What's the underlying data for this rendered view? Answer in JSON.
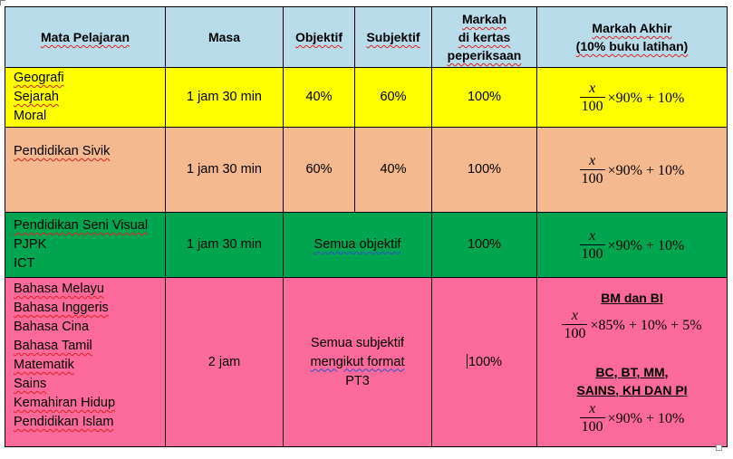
{
  "headers": {
    "mata_pelajaran": "Mata Pelajaran",
    "masa": "Masa",
    "objektif": "Objektif",
    "subjektif": "Subjektif",
    "markah_line1": "Markah",
    "markah_line2": "di kertas",
    "markah_line3": "peperiksaan",
    "akhir_line1": "Markah Akhir",
    "akhir_line2": "(10% buku latihan)"
  },
  "rows": [
    {
      "subjects": [
        "Geografi",
        "Sejarah",
        "Moral"
      ],
      "masa": "1 jam 30 min",
      "objektif": "40%",
      "subjektif": "60%",
      "markah": "100%",
      "formula": {
        "num": "x",
        "den": "100",
        "rest": "×90% + 10%"
      }
    },
    {
      "subjects": [
        "Pendidikan Sivik"
      ],
      "masa": "1 jam 30 min",
      "objektif": "60%",
      "subjektif": "40%",
      "markah": "100%",
      "formula": {
        "num": "x",
        "den": "100",
        "rest": "×90% + 10%"
      }
    },
    {
      "subjects": [
        "Pendidikan Seni Visual",
        "PJPK",
        "ICT"
      ],
      "masa": "1 jam 30 min",
      "merged": "Semua objektif",
      "markah": "100%",
      "formula": {
        "num": "x",
        "den": "100",
        "rest": "×90% + 10%"
      }
    },
    {
      "subjects": [
        "Bahasa Melayu",
        "Bahasa Inggeris",
        "Bahasa Cina",
        "Bahasa Tamil",
        "Matematik",
        "Sains",
        "Kemahiran Hidup",
        "Pendidikan Islam"
      ],
      "masa": "2 jam",
      "merged_line1": "Semua subjektif",
      "merged_line2": "mengikut format",
      "merged_line3": "PT3",
      "markah": "100%",
      "heading1": "BM dan BI",
      "formula1": {
        "num": "x",
        "den": "100",
        "rest": "×85% + 10% + 5%"
      },
      "heading2_line1": "BC, BT, MM,",
      "heading2_line2": "SAINS, KH DAN PI",
      "formula2": {
        "num": "x",
        "den": "100",
        "rest": "×90% + 10%"
      }
    }
  ],
  "colors": {
    "header": "#b8dcea",
    "row1": "#ffff00",
    "row2": "#f4b98e",
    "row3": "#00a550",
    "row4": "#fb6a9a"
  }
}
